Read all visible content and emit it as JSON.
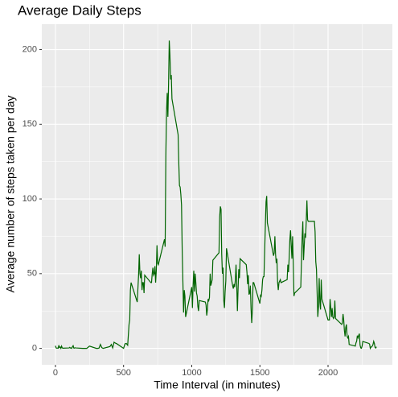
{
  "chart_data": {
    "type": "line",
    "title": "Average Daily Steps",
    "xlabel": "Time Interval (in minutes)",
    "ylabel": "Average number of steps taken per day",
    "x": [
      0,
      5,
      10,
      15,
      20,
      25,
      30,
      35,
      40,
      45,
      50,
      55,
      100,
      105,
      110,
      115,
      120,
      125,
      130,
      135,
      140,
      145,
      150,
      200,
      230,
      250,
      300,
      310,
      320,
      330,
      340,
      350,
      400,
      410,
      420,
      430,
      440,
      450,
      500,
      510,
      520,
      530,
      540,
      545,
      550,
      555,
      600,
      610,
      615,
      620,
      625,
      630,
      635,
      640,
      645,
      650,
      655,
      700,
      705,
      710,
      715,
      720,
      725,
      730,
      735,
      740,
      745,
      750,
      755,
      800,
      805,
      810,
      815,
      820,
      825,
      830,
      835,
      840,
      845,
      850,
      855,
      900,
      905,
      910,
      915,
      920,
      925,
      930,
      935,
      940,
      945,
      950,
      955,
      1000,
      1005,
      1010,
      1015,
      1020,
      1025,
      1030,
      1035,
      1040,
      1045,
      1050,
      1055,
      1100,
      1105,
      1110,
      1115,
      1120,
      1125,
      1130,
      1135,
      1140,
      1145,
      1150,
      1155,
      1200,
      1205,
      1210,
      1215,
      1220,
      1225,
      1230,
      1235,
      1240,
      1245,
      1250,
      1255,
      1300,
      1305,
      1310,
      1315,
      1320,
      1325,
      1330,
      1335,
      1340,
      1345,
      1350,
      1355,
      1400,
      1405,
      1410,
      1415,
      1420,
      1425,
      1430,
      1435,
      1440,
      1445,
      1450,
      1455,
      1500,
      1505,
      1510,
      1515,
      1520,
      1525,
      1530,
      1535,
      1540,
      1545,
      1550,
      1555,
      1600,
      1605,
      1610,
      1615,
      1620,
      1625,
      1630,
      1635,
      1640,
      1645,
      1650,
      1655,
      1700,
      1705,
      1710,
      1715,
      1720,
      1725,
      1730,
      1735,
      1740,
      1745,
      1750,
      1755,
      1800,
      1805,
      1810,
      1815,
      1820,
      1825,
      1830,
      1835,
      1840,
      1845,
      1850,
      1855,
      1900,
      1905,
      1910,
      1915,
      1920,
      1925,
      1930,
      1935,
      1940,
      1945,
      1950,
      1955,
      2000,
      2005,
      2010,
      2015,
      2020,
      2025,
      2030,
      2035,
      2040,
      2045,
      2050,
      2055,
      2100,
      2105,
      2110,
      2115,
      2120,
      2125,
      2130,
      2135,
      2140,
      2145,
      2150,
      2155,
      2200,
      2205,
      2210,
      2215,
      2220,
      2225,
      2230,
      2235,
      2240,
      2245,
      2250,
      2255,
      2300,
      2305,
      2310,
      2315,
      2320,
      2325,
      2330,
      2335,
      2340,
      2345,
      2350,
      2355
    ],
    "series": [
      {
        "name": "steps",
        "color": "#006400",
        "values": [
          1.7,
          0.3,
          0.1,
          0.2,
          0.1,
          2.1,
          0.5,
          0.9,
          0,
          1.5,
          0.3,
          0.1,
          0.3,
          0.7,
          0.2,
          0.3,
          0,
          1.1,
          1.8,
          0.2,
          0.2,
          0.4,
          0.3,
          0,
          0,
          1.5,
          0,
          0,
          0.2,
          2.6,
          0.5,
          0,
          1.2,
          2.6,
          0.3,
          4.1,
          3.5,
          3.1,
          0,
          3,
          3.3,
          2.1,
          16,
          19,
          39,
          44,
          31,
          49,
          63,
          50,
          47,
          52,
          39,
          44,
          44,
          37,
          49,
          44,
          44,
          50,
          54,
          49,
          50,
          55,
          44,
          52,
          69,
          57,
          56,
          73,
          68,
          129,
          158,
          171,
          155,
          177,
          206,
          196,
          180,
          183,
          167,
          143,
          124,
          109,
          108,
          103,
          96,
          66,
          45,
          24,
          39,
          35,
          21,
          41,
          27,
          42,
          52,
          38,
          50,
          44,
          37,
          35,
          28,
          25,
          32,
          31,
          29,
          22,
          26,
          33,
          32,
          34,
          50,
          42,
          44,
          46,
          59,
          64,
          88,
          95,
          93,
          63,
          50,
          54,
          32,
          27,
          38,
          45,
          67,
          42,
          40,
          43,
          41,
          46,
          56,
          43,
          25,
          40,
          53,
          47,
          60,
          56,
          51,
          43,
          49,
          36,
          37,
          42,
          27,
          17,
          26,
          44,
          44,
          30,
          36,
          35,
          39,
          46,
          48,
          48,
          65,
          82,
          98,
          102,
          84,
          62,
          64,
          75,
          63,
          57,
          60,
          44,
          39,
          44,
          45,
          46,
          44,
          46,
          56,
          51,
          61,
          73,
          79,
          69,
          60,
          75,
          57,
          35,
          37,
          41,
          58,
          74,
          85,
          59,
          68,
          77,
          74,
          85,
          99,
          86,
          85,
          85,
          78,
          58,
          53,
          37,
          21,
          28,
          47,
          31,
          26,
          46,
          33,
          19,
          19,
          19,
          33,
          27,
          21,
          27,
          21,
          20,
          21,
          32,
          20,
          16,
          17,
          23,
          19,
          12,
          8,
          14,
          16,
          8,
          7,
          8,
          2.6,
          1.5,
          3.7,
          4.8,
          8.5,
          7.1,
          8.7,
          9.8,
          2.2,
          0.3,
          0.1,
          1.6,
          4.6,
          3.3,
          2.8,
          0,
          0.8,
          1,
          1.6,
          2.6,
          4.7,
          3.3,
          0.6,
          0.2,
          1.1
        ]
      }
    ],
    "xlim": [
      -100,
      2472
    ],
    "ylim": [
      -11,
      217
    ],
    "xticks": [
      0,
      500,
      1000,
      1500,
      2000
    ],
    "yticks": [
      0,
      50,
      100,
      150,
      200
    ],
    "x_minor_ticks": [
      250,
      750,
      1250,
      1750,
      2250
    ],
    "y_minor_ticks": [
      25,
      75,
      125,
      175
    ],
    "grid": true
  }
}
